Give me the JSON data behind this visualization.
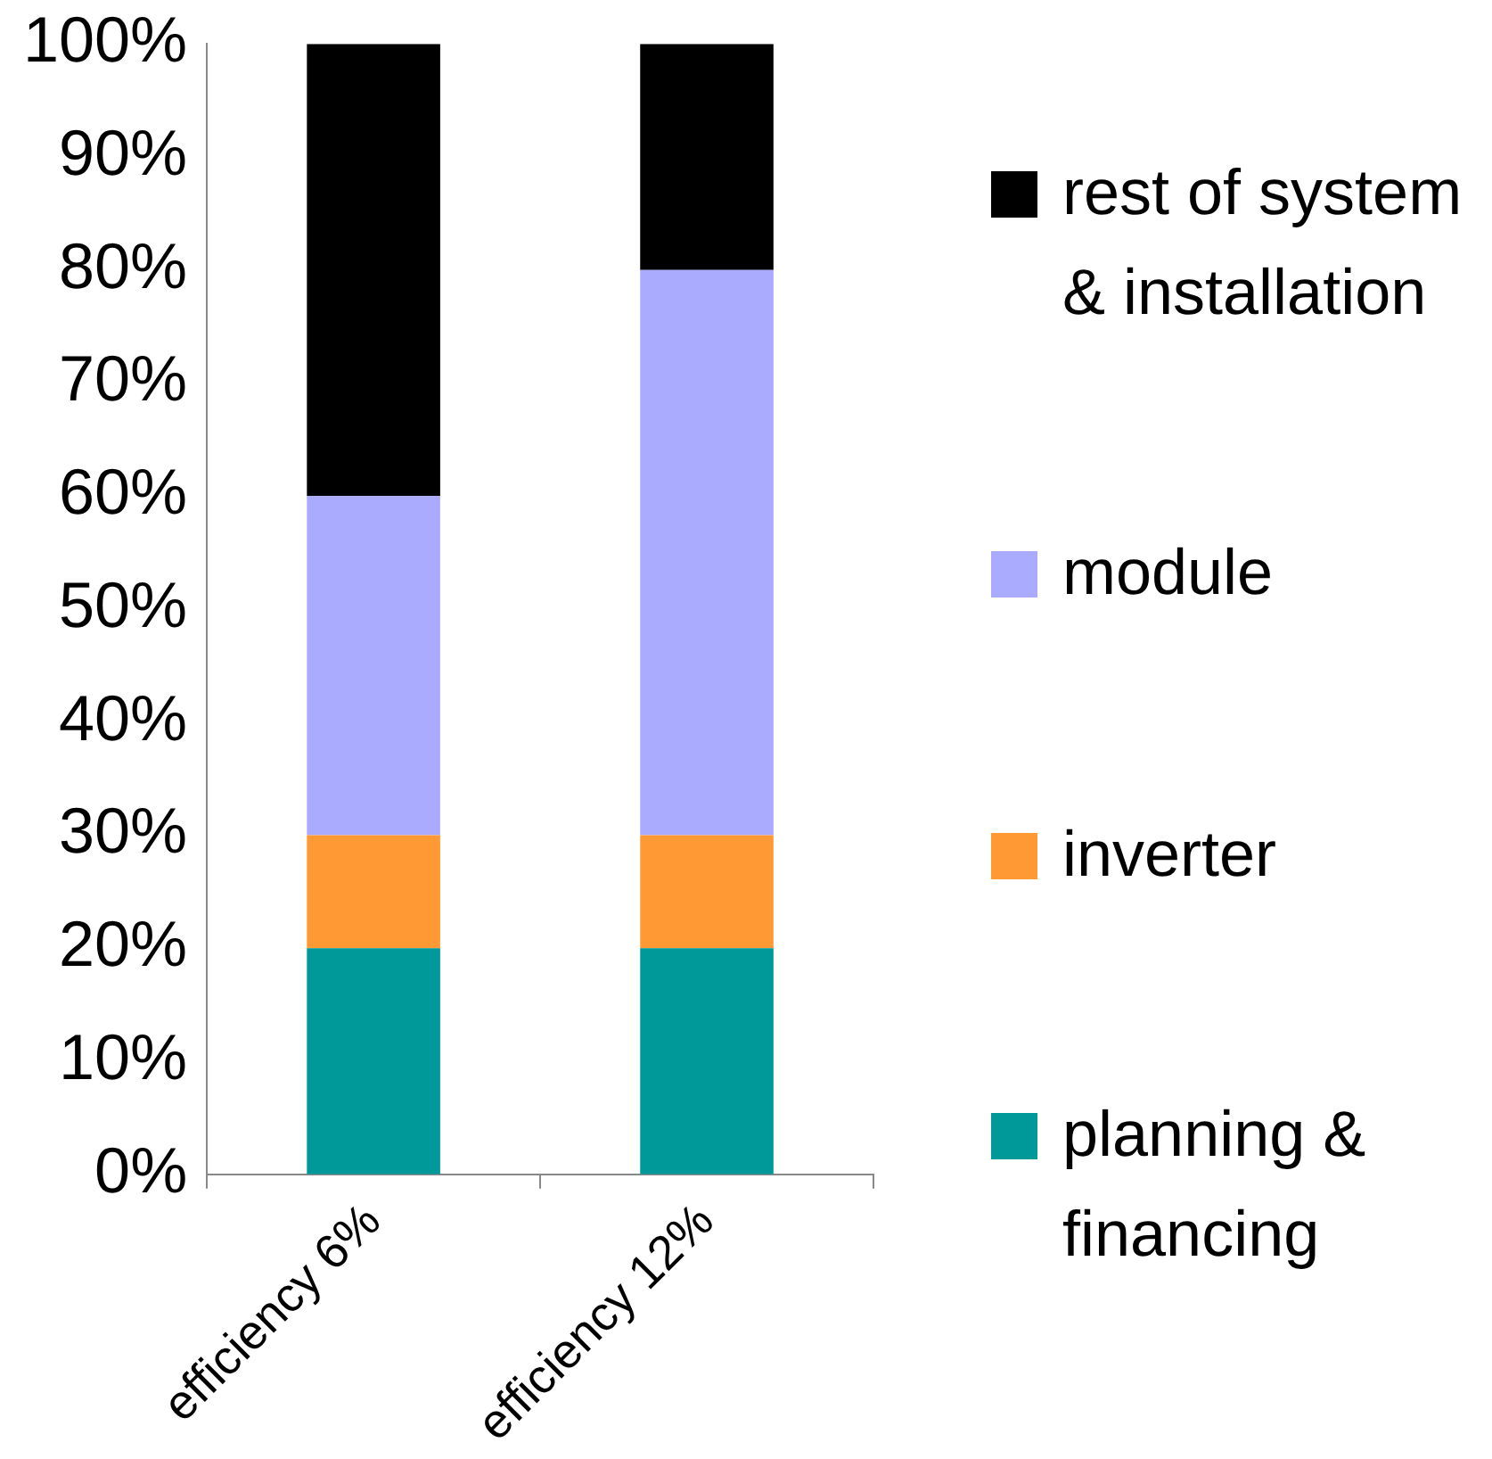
{
  "chart_data": {
    "type": "bar",
    "stacked": true,
    "categories": [
      "efficiency 6%",
      "efficiency 12%"
    ],
    "series": [
      {
        "name": "planning & financing",
        "color": "#009999",
        "values": [
          20,
          20
        ]
      },
      {
        "name": "inverter",
        "color": "#ff9933",
        "values": [
          10,
          10
        ]
      },
      {
        "name": "module",
        "color": "#aaaaff",
        "values": [
          30,
          50
        ]
      },
      {
        "name": "rest of system & installation",
        "color": "#000000",
        "values": [
          40,
          20
        ]
      }
    ],
    "ylim": [
      0,
      100
    ],
    "yticks": [
      {
        "value": 0,
        "label": "0%"
      },
      {
        "value": 10,
        "label": "10%"
      },
      {
        "value": 20,
        "label": "20%"
      },
      {
        "value": 30,
        "label": "30%"
      },
      {
        "value": 40,
        "label": "40%"
      },
      {
        "value": 50,
        "label": "50%"
      },
      {
        "value": 60,
        "label": "60%"
      },
      {
        "value": 70,
        "label": "70%"
      },
      {
        "value": 80,
        "label": "80%"
      },
      {
        "value": 90,
        "label": "90%"
      },
      {
        "value": 100,
        "label": "100%"
      }
    ],
    "grid": false,
    "legend": "right"
  }
}
